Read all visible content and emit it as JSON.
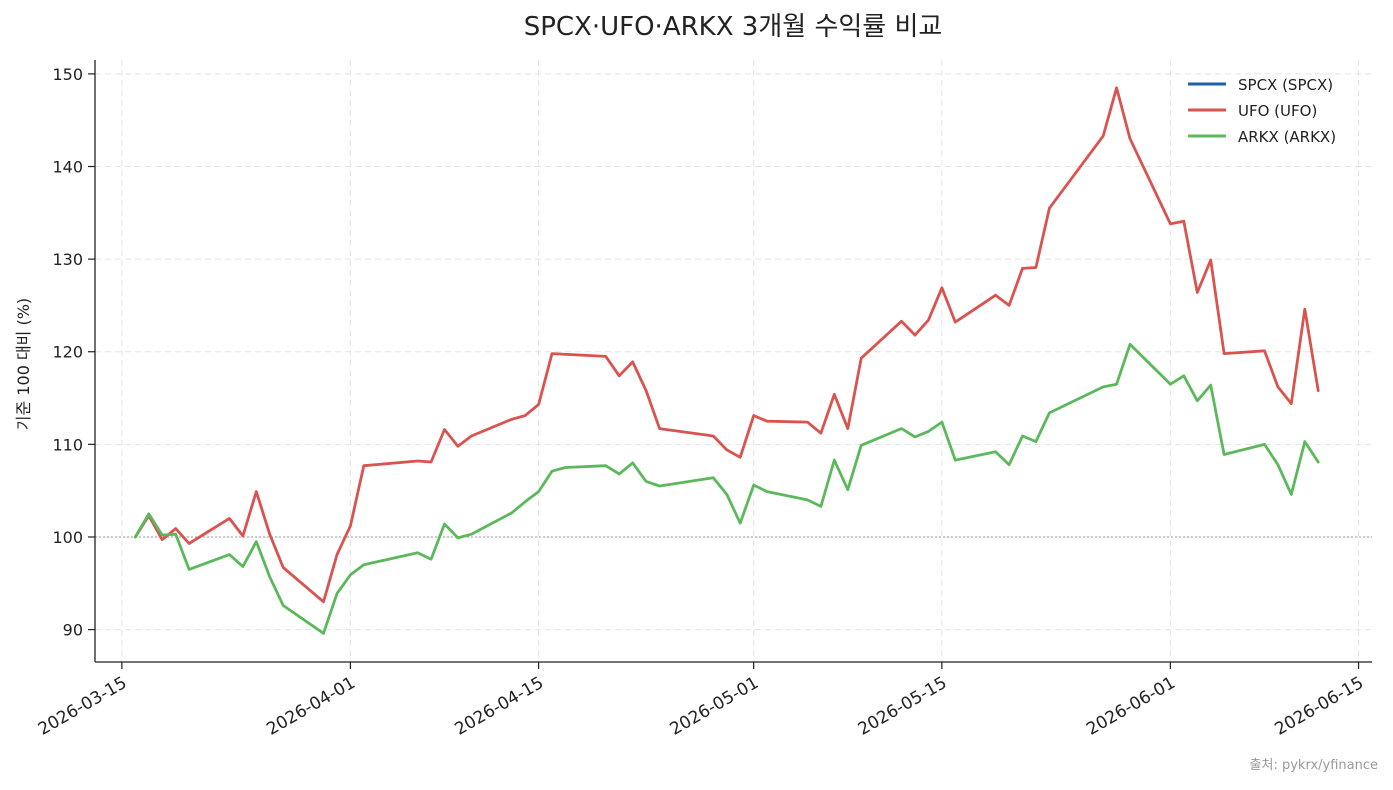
{
  "chart_data": {
    "type": "line",
    "title": "SPCX·UFO·ARKX 3개월 수익률 비교",
    "ylabel": "기준 100 대비 (%)",
    "xlabel": "",
    "source": "출처: pykrx/yfinance",
    "ylim": [
      86.5,
      151.5
    ],
    "xlim": [
      "2026-03-13",
      "2026-06-16"
    ],
    "yticks": [
      90,
      100,
      110,
      120,
      130,
      140,
      150
    ],
    "xticks": [
      "2026-03-15",
      "2026-04-01",
      "2026-04-15",
      "2026-05-01",
      "2026-05-15",
      "2026-06-01",
      "2026-06-15"
    ],
    "baseline": 100,
    "grid": true,
    "legend_position": "top-right",
    "series": [
      {
        "name": "SPCX (SPCX)",
        "color": "#1f5fad",
        "points": []
      },
      {
        "name": "UFO (UFO)",
        "color": "#d9534f",
        "points": [
          [
            "2026-03-16",
            100.0
          ],
          [
            "2026-03-17",
            102.3
          ],
          [
            "2026-03-18",
            99.7
          ],
          [
            "2026-03-19",
            100.9
          ],
          [
            "2026-03-20",
            99.3
          ],
          [
            "2026-03-23",
            102.0
          ],
          [
            "2026-03-24",
            100.1
          ],
          [
            "2026-03-25",
            104.9
          ],
          [
            "2026-03-26",
            100.3
          ],
          [
            "2026-03-27",
            96.7
          ],
          [
            "2026-03-30",
            93.0
          ],
          [
            "2026-03-31",
            98.1
          ],
          [
            "2026-04-01",
            101.2
          ],
          [
            "2026-04-02",
            107.7
          ],
          [
            "2026-04-06",
            108.2
          ],
          [
            "2026-04-07",
            108.1
          ],
          [
            "2026-04-08",
            111.6
          ],
          [
            "2026-04-09",
            109.8
          ],
          [
            "2026-04-10",
            110.9
          ],
          [
            "2026-04-13",
            112.7
          ],
          [
            "2026-04-14",
            113.1
          ],
          [
            "2026-04-15",
            114.3
          ],
          [
            "2026-04-16",
            119.8
          ],
          [
            "2026-04-20",
            119.5
          ],
          [
            "2026-04-21",
            117.4
          ],
          [
            "2026-04-22",
            118.9
          ],
          [
            "2026-04-23",
            115.8
          ],
          [
            "2026-04-24",
            111.7
          ],
          [
            "2026-04-28",
            110.9
          ],
          [
            "2026-04-29",
            109.4
          ],
          [
            "2026-04-30",
            108.6
          ],
          [
            "2026-05-01",
            113.1
          ],
          [
            "2026-05-02",
            112.5
          ],
          [
            "2026-05-05",
            112.4
          ],
          [
            "2026-05-06",
            111.2
          ],
          [
            "2026-05-07",
            115.4
          ],
          [
            "2026-05-08",
            111.7
          ],
          [
            "2026-05-09",
            119.3
          ],
          [
            "2026-05-12",
            123.3
          ],
          [
            "2026-05-13",
            121.8
          ],
          [
            "2026-05-14",
            123.4
          ],
          [
            "2026-05-15",
            126.9
          ],
          [
            "2026-05-16",
            123.2
          ],
          [
            "2026-05-19",
            126.1
          ],
          [
            "2026-05-20",
            125.0
          ],
          [
            "2026-05-21",
            129.0
          ],
          [
            "2026-05-22",
            129.1
          ],
          [
            "2026-05-23",
            135.5
          ],
          [
            "2026-05-27",
            143.3
          ],
          [
            "2026-05-28",
            148.5
          ],
          [
            "2026-05-29",
            143.0
          ],
          [
            "2026-06-01",
            133.8
          ],
          [
            "2026-06-02",
            134.1
          ],
          [
            "2026-06-03",
            126.4
          ],
          [
            "2026-06-04",
            129.9
          ],
          [
            "2026-06-05",
            119.8
          ],
          [
            "2026-06-08",
            120.1
          ],
          [
            "2026-06-09",
            116.2
          ],
          [
            "2026-06-10",
            114.4
          ],
          [
            "2026-06-11",
            124.6
          ],
          [
            "2026-06-12",
            115.8
          ]
        ]
      },
      {
        "name": "ARKX (ARKX)",
        "color": "#5cb85c",
        "points": [
          [
            "2026-03-16",
            100.0
          ],
          [
            "2026-03-17",
            102.5
          ],
          [
            "2026-03-18",
            100.2
          ],
          [
            "2026-03-19",
            100.3
          ],
          [
            "2026-03-20",
            96.5
          ],
          [
            "2026-03-23",
            98.1
          ],
          [
            "2026-03-24",
            96.8
          ],
          [
            "2026-03-25",
            99.5
          ],
          [
            "2026-03-26",
            95.7
          ],
          [
            "2026-03-27",
            92.6
          ],
          [
            "2026-03-30",
            89.6
          ],
          [
            "2026-03-31",
            93.9
          ],
          [
            "2026-04-01",
            95.9
          ],
          [
            "2026-04-02",
            97.0
          ],
          [
            "2026-04-06",
            98.3
          ],
          [
            "2026-04-07",
            97.6
          ],
          [
            "2026-04-08",
            101.4
          ],
          [
            "2026-04-09",
            99.9
          ],
          [
            "2026-04-10",
            100.3
          ],
          [
            "2026-04-13",
            102.6
          ],
          [
            "2026-04-14",
            103.8
          ],
          [
            "2026-04-15",
            104.9
          ],
          [
            "2026-04-16",
            107.1
          ],
          [
            "2026-04-17",
            107.5
          ],
          [
            "2026-04-20",
            107.7
          ],
          [
            "2026-04-21",
            106.8
          ],
          [
            "2026-04-22",
            108.0
          ],
          [
            "2026-04-23",
            106.0
          ],
          [
            "2026-04-24",
            105.5
          ],
          [
            "2026-04-28",
            106.4
          ],
          [
            "2026-04-29",
            104.6
          ],
          [
            "2026-04-30",
            101.5
          ],
          [
            "2026-05-01",
            105.6
          ],
          [
            "2026-05-02",
            104.9
          ],
          [
            "2026-05-05",
            104.0
          ],
          [
            "2026-05-06",
            103.3
          ],
          [
            "2026-05-07",
            108.3
          ],
          [
            "2026-05-08",
            105.1
          ],
          [
            "2026-05-09",
            109.9
          ],
          [
            "2026-05-12",
            111.7
          ],
          [
            "2026-05-13",
            110.8
          ],
          [
            "2026-05-14",
            111.4
          ],
          [
            "2026-05-15",
            112.4
          ],
          [
            "2026-05-16",
            108.3
          ],
          [
            "2026-05-19",
            109.2
          ],
          [
            "2026-05-20",
            107.8
          ],
          [
            "2026-05-21",
            110.9
          ],
          [
            "2026-05-22",
            110.3
          ],
          [
            "2026-05-23",
            113.4
          ],
          [
            "2026-05-27",
            116.2
          ],
          [
            "2026-05-28",
            116.5
          ],
          [
            "2026-05-29",
            120.8
          ],
          [
            "2026-06-01",
            116.5
          ],
          [
            "2026-06-02",
            117.4
          ],
          [
            "2026-06-03",
            114.7
          ],
          [
            "2026-06-04",
            116.4
          ],
          [
            "2026-06-05",
            108.9
          ],
          [
            "2026-06-08",
            110.0
          ],
          [
            "2026-06-09",
            107.8
          ],
          [
            "2026-06-10",
            104.6
          ],
          [
            "2026-06-11",
            110.3
          ],
          [
            "2026-06-12",
            108.1
          ]
        ]
      }
    ]
  }
}
